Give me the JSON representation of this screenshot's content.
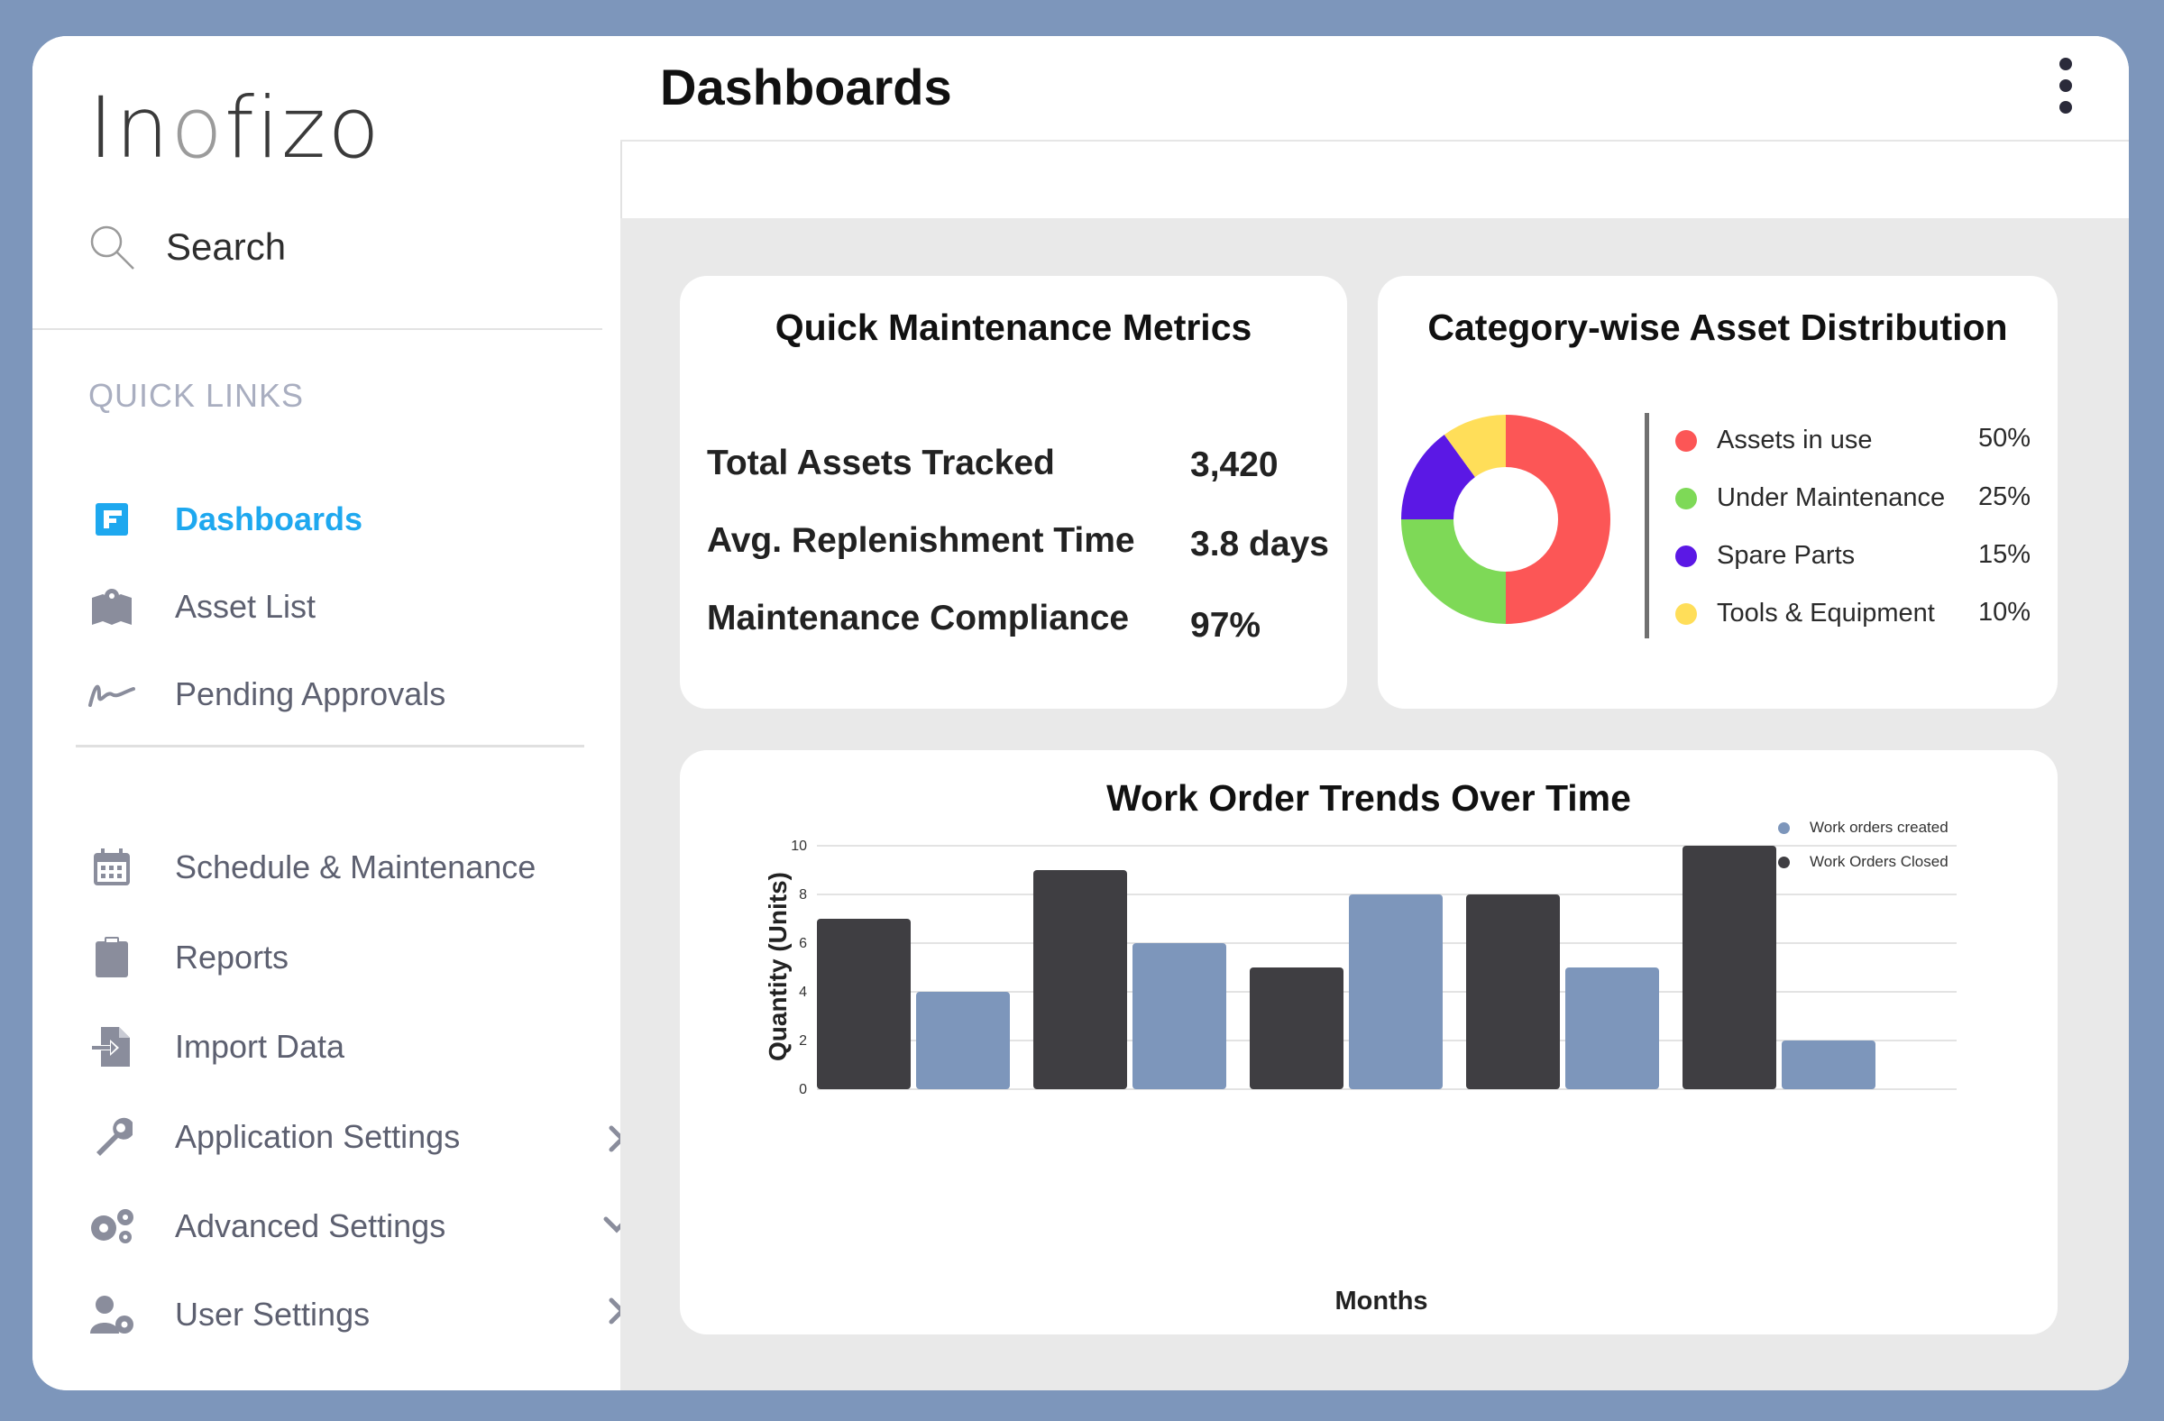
{
  "brand": {
    "logo_prefix": "In",
    "logo_mark": "o",
    "logo_suffix": "fizo"
  },
  "sidebar": {
    "search_label": "Search",
    "quick_links_title": "QUICK LINKS",
    "quick_links": [
      {
        "label": "Dashboards",
        "icon": "dashboard-icon",
        "active": true
      },
      {
        "label": "Asset List",
        "icon": "map-icon"
      },
      {
        "label": "Pending Approvals",
        "icon": "signature-icon"
      }
    ],
    "menu": [
      {
        "label": "Schedule & Maintenance",
        "icon": "calendar-icon"
      },
      {
        "label": "Reports",
        "icon": "clipboard-icon"
      },
      {
        "label": "Import Data",
        "icon": "import-icon"
      },
      {
        "label": "Application Settings",
        "icon": "wrench-icon",
        "chevron": "right"
      },
      {
        "label": "Advanced Settings",
        "icon": "gears-icon",
        "chevron": "down"
      },
      {
        "label": "User Settings",
        "icon": "user-gear-icon",
        "chevron": "right"
      }
    ]
  },
  "header": {
    "title": "Dashboards"
  },
  "metrics": {
    "title": "Quick Maintenance Metrics",
    "rows": [
      {
        "label": "Total Assets Tracked",
        "value": "3,420"
      },
      {
        "label": "Avg. Replenishment Time",
        "value": "3.8 days"
      },
      {
        "label": "Maintenance Compliance",
        "value": "97%"
      }
    ]
  },
  "distribution": {
    "title": "Category-wise Asset Distribution",
    "items": [
      {
        "label": "Assets in use",
        "pct": "50%",
        "value": 50,
        "color": "#fc5656"
      },
      {
        "label": "Under Maintenance",
        "pct": "25%",
        "value": 25,
        "color": "#7ed957"
      },
      {
        "label": "Spare Parts",
        "pct": "15%",
        "value": 15,
        "color": "#5b18e5"
      },
      {
        "label": "Tools & Equipment",
        "pct": "10%",
        "value": 10,
        "color": "#ffde59"
      }
    ]
  },
  "chart_data": {
    "type": "bar",
    "title": "Work Order Trends Over Time",
    "xlabel": "Months",
    "ylabel": "Quantity (Units)",
    "ylim": [
      0,
      10
    ],
    "yticks": [
      "0",
      "2",
      "4",
      "6",
      "8",
      "10"
    ],
    "groups": 5,
    "series": [
      {
        "name": "Work Orders Closed",
        "color": "#3f3e42",
        "values": [
          7,
          9,
          5,
          8,
          10
        ]
      },
      {
        "name": "Work orders created",
        "color": "#7d96bb",
        "values": [
          4,
          6,
          8,
          5,
          2
        ]
      }
    ],
    "legend": [
      "Work orders created",
      "Work Orders Closed"
    ]
  }
}
